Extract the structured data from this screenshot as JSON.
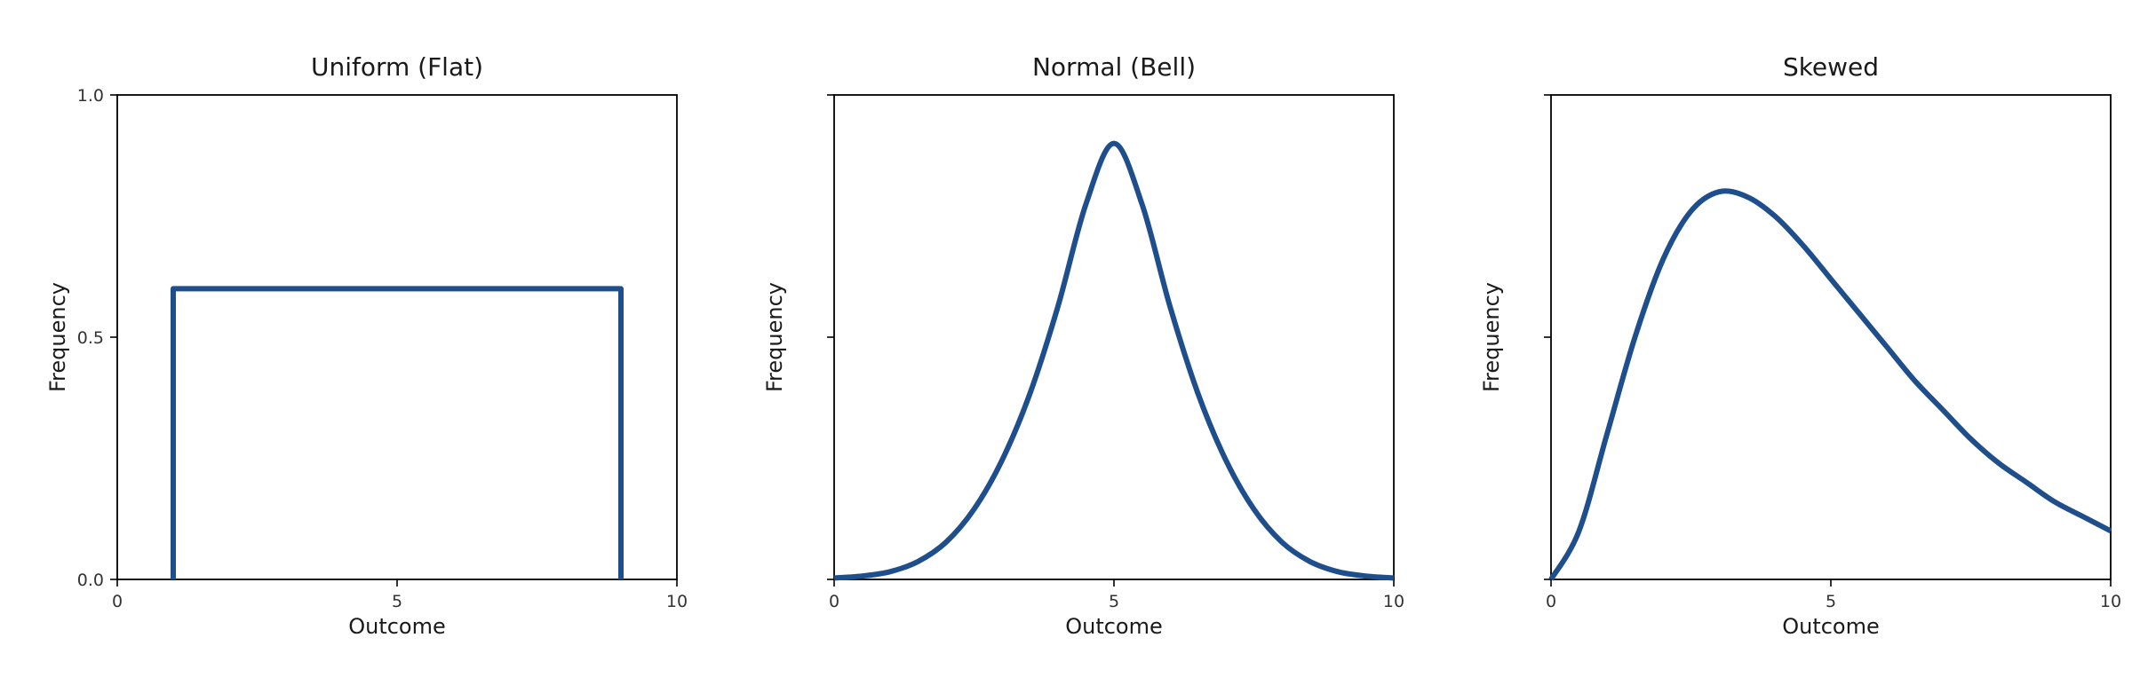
{
  "figure": {
    "line_color": "#1f4e8c"
  },
  "chart_data": [
    {
      "type": "line",
      "title": "Uniform (Flat)",
      "xlabel": "Outcome",
      "ylabel": "Frequency",
      "xlim": [
        0,
        10
      ],
      "ylim": [
        0,
        1
      ],
      "xticks": [
        0,
        5,
        10
      ],
      "xtick_labels": [
        "0",
        "5",
        "10"
      ],
      "yticks": [
        0,
        0.5,
        1
      ],
      "ytick_labels": [
        "0.0",
        "0.5",
        "1.0"
      ],
      "grid": false,
      "series": [
        {
          "x": [
            1,
            1,
            9,
            9
          ],
          "y": [
            0,
            0.6,
            0.6,
            0
          ]
        }
      ]
    },
    {
      "type": "line",
      "title": "Normal (Bell)",
      "xlabel": "Outcome",
      "ylabel": "Frequency",
      "xlim": [
        0,
        10
      ],
      "ylim": [
        0,
        1
      ],
      "xticks": [
        0,
        5,
        10
      ],
      "xtick_labels": [
        "0",
        "5",
        "10"
      ],
      "yticks": [
        0,
        0.5,
        1
      ],
      "ytick_labels": [
        "",
        "",
        ""
      ],
      "grid": false,
      "series": [
        {
          "x": [
            0,
            0.5,
            1,
            1.5,
            2,
            2.5,
            3,
            3.5,
            4,
            4.5,
            5,
            5.5,
            6,
            6.5,
            7,
            7.5,
            8,
            8.5,
            9,
            9.5,
            10
          ],
          "y": [
            0.003,
            0.007,
            0.016,
            0.037,
            0.077,
            0.145,
            0.246,
            0.384,
            0.564,
            0.775,
            0.9,
            0.775,
            0.564,
            0.384,
            0.246,
            0.145,
            0.077,
            0.037,
            0.016,
            0.007,
            0.003
          ]
        }
      ]
    },
    {
      "type": "line",
      "title": "Skewed",
      "xlabel": "Outcome",
      "ylabel": "Frequency",
      "xlim": [
        0,
        10
      ],
      "ylim": [
        0,
        1
      ],
      "xticks": [
        0,
        5,
        10
      ],
      "xtick_labels": [
        "0",
        "5",
        "10"
      ],
      "yticks": [
        0,
        0.5,
        1
      ],
      "ytick_labels": [
        "",
        "",
        ""
      ],
      "grid": false,
      "series": [
        {
          "x": [
            0,
            0.5,
            1,
            1.5,
            2,
            2.5,
            3,
            3.5,
            4,
            4.5,
            5,
            5.5,
            6,
            6.5,
            7,
            7.5,
            8,
            8.5,
            9,
            9.5,
            10
          ],
          "y": [
            0.0,
            0.1,
            0.3,
            0.5,
            0.66,
            0.76,
            0.8,
            0.79,
            0.75,
            0.69,
            0.62,
            0.55,
            0.48,
            0.41,
            0.35,
            0.29,
            0.24,
            0.2,
            0.16,
            0.13,
            0.1
          ]
        }
      ]
    }
  ]
}
